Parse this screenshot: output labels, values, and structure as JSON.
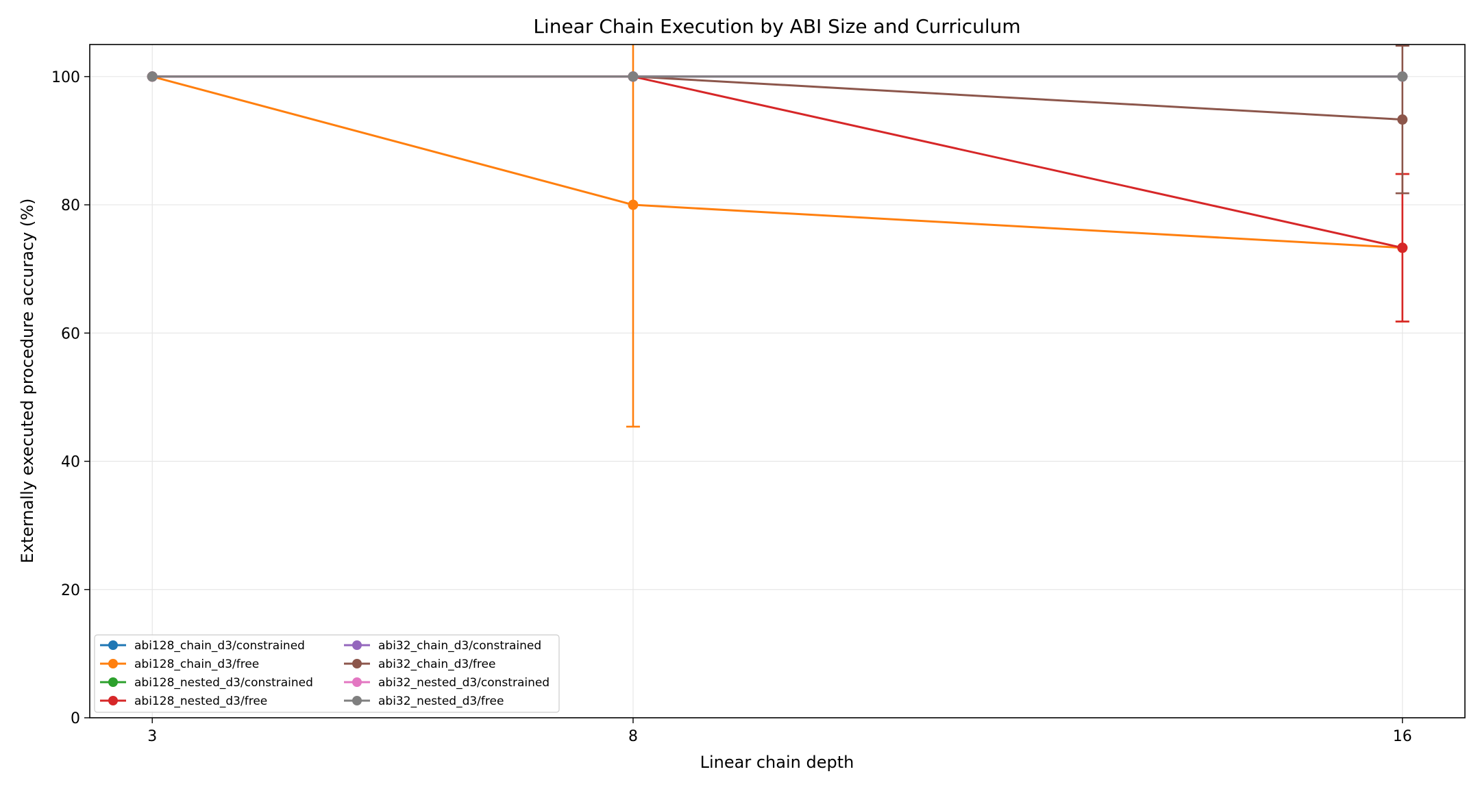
{
  "chart_data": {
    "type": "line",
    "title": "Linear Chain Execution by ABI Size and Curriculum",
    "xlabel": "Linear chain depth",
    "ylabel": "Externally executed procedure accuracy (%)",
    "x": [
      3,
      8,
      16
    ],
    "xlim": [
      2.35,
      16.65
    ],
    "ylim": [
      0,
      105
    ],
    "yticks": [
      0,
      20,
      40,
      60,
      80,
      100
    ],
    "grid": true,
    "legend_position": "bottom-left",
    "series": [
      {
        "name": "abi128_chain_d3/constrained",
        "color": "#1f77b4",
        "values": [
          100,
          100,
          100
        ],
        "err": [
          0,
          0,
          0
        ]
      },
      {
        "name": "abi128_chain_d3/free",
        "color": "#ff7f0e",
        "values": [
          100,
          80,
          73.3
        ],
        "err": [
          0,
          34.6,
          11.5
        ]
      },
      {
        "name": "abi128_nested_d3/constrained",
        "color": "#2ca02c",
        "values": [
          100,
          100,
          100
        ],
        "err": [
          0,
          0,
          0
        ]
      },
      {
        "name": "abi128_nested_d3/free",
        "color": "#d62728",
        "values": [
          100,
          100,
          73.3
        ],
        "err": [
          0,
          0,
          11.5
        ]
      },
      {
        "name": "abi32_chain_d3/constrained",
        "color": "#9467bd",
        "values": [
          100,
          100,
          100
        ],
        "err": [
          0,
          0,
          0
        ]
      },
      {
        "name": "abi32_chain_d3/free",
        "color": "#8c564b",
        "values": [
          100,
          100,
          93.3
        ],
        "err": [
          0,
          0,
          11.5
        ]
      },
      {
        "name": "abi32_nested_d3/constrained",
        "color": "#e377c2",
        "values": [
          100,
          100,
          100
        ],
        "err": [
          0,
          0,
          0
        ]
      },
      {
        "name": "abi32_nested_d3/free",
        "color": "#7f7f7f",
        "values": [
          100,
          100,
          100
        ],
        "err": [
          0,
          0,
          0
        ]
      }
    ]
  }
}
